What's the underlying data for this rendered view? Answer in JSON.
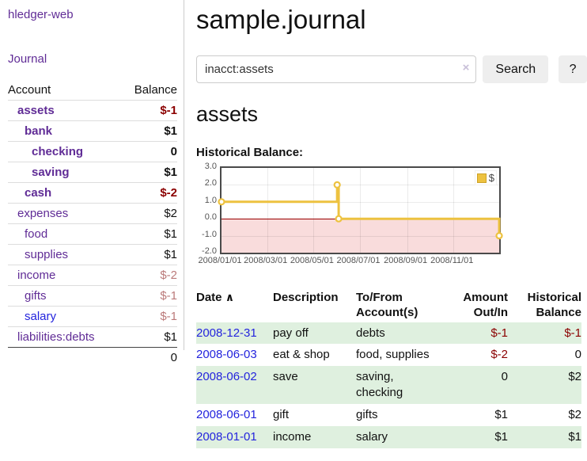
{
  "app": {
    "brand": "hledger-web"
  },
  "sidebar": {
    "journal_label": "Journal",
    "accounts_table": {
      "account_header": "Account",
      "balance_header": "Balance",
      "rows": [
        {
          "name": "assets",
          "level": 0,
          "bold": true,
          "balance": "$-1",
          "neg": "strong"
        },
        {
          "name": "bank",
          "level": 1,
          "bold": true,
          "balance": "$1"
        },
        {
          "name": "checking",
          "level": 2,
          "bold": true,
          "balance": "0"
        },
        {
          "name": "saving",
          "level": 2,
          "bold": true,
          "balance": "$1"
        },
        {
          "name": "cash",
          "level": 1,
          "bold": true,
          "balance": "$-2",
          "neg": "strong"
        },
        {
          "name": "expenses",
          "level": 0,
          "bold": false,
          "balance": "$2"
        },
        {
          "name": "food",
          "level": 1,
          "bold": false,
          "balance": "$1"
        },
        {
          "name": "supplies",
          "level": 1,
          "bold": false,
          "balance": "$1"
        },
        {
          "name": "income",
          "level": 0,
          "bold": false,
          "balance": "$-2",
          "neg": "soft"
        },
        {
          "name": "gifts",
          "level": 1,
          "bold": false,
          "balance": "$-1",
          "neg": "soft"
        },
        {
          "name": "salary",
          "level": 1,
          "bold": false,
          "balance": "$-1",
          "neg": "soft",
          "link_blue": true
        },
        {
          "name": "liabilities:debts",
          "level": 0,
          "bold": false,
          "balance": "$1"
        }
      ],
      "total": "0"
    }
  },
  "header": {
    "title": "sample.journal"
  },
  "search": {
    "query": "inacct:assets",
    "clear_icon": "×",
    "search_label": "Search",
    "help_label": "?"
  },
  "account_page": {
    "heading": "assets",
    "chart_label": "Historical Balance:"
  },
  "chart_data": {
    "type": "line",
    "title": "Historical Balance",
    "step": true,
    "series": [
      {
        "name": "$",
        "color": "#edc240",
        "points": [
          [
            "2008-01-01",
            1
          ],
          [
            "2008-06-01",
            2
          ],
          [
            "2008-06-03",
            0
          ],
          [
            "2008-12-31",
            -1
          ]
        ]
      }
    ],
    "x_range": [
      "2008-01-01",
      "2008-12-31"
    ],
    "x_ticks": [
      "2008/01/01",
      "2008/03/01",
      "2008/05/01",
      "2008/07/01",
      "2008/09/01",
      "2008/11/01"
    ],
    "y_ticks": [
      3.0,
      2.0,
      1.0,
      0.0,
      -1.0,
      -2.0
    ],
    "y_tick_labels": [
      "3.0",
      "2.0",
      "1.0",
      "0.0",
      "-1.0",
      "-2.0"
    ],
    "ylim": [
      -2,
      3
    ],
    "grid": true,
    "legend": {
      "position": "top-right",
      "label": "$"
    },
    "marker_fill": "#ffffff",
    "negative_region_color": "#f9dcdc",
    "zero_line_color": "#990000"
  },
  "register": {
    "headers": {
      "date": "Date",
      "sort_icon": "∧",
      "description": "Description",
      "accounts_line1": "To/From",
      "accounts_line2": "Account(s)",
      "amount_line1": "Amount",
      "amount_line2": "Out/In",
      "balance_line1": "Historical",
      "balance_line2": "Balance"
    },
    "rows": [
      {
        "date": "2008-12-31",
        "description": "pay off",
        "accounts": "debts",
        "amount": "$-1",
        "amount_neg": true,
        "balance": "$-1",
        "balance_neg": true
      },
      {
        "date": "2008-06-03",
        "description": "eat & shop",
        "accounts": "food, supplies",
        "amount": "$-2",
        "amount_neg": true,
        "balance": "0",
        "balance_neg": false
      },
      {
        "date": "2008-06-02",
        "description": "save",
        "accounts": "saving,\nchecking",
        "amount": "0",
        "amount_neg": false,
        "balance": "$2",
        "balance_neg": false
      },
      {
        "date": "2008-06-01",
        "description": "gift",
        "accounts": "gifts",
        "amount": "$1",
        "amount_neg": false,
        "balance": "$2",
        "balance_neg": false
      },
      {
        "date": "2008-01-01",
        "description": "income",
        "accounts": "salary",
        "amount": "$1",
        "amount_neg": false,
        "balance": "$1",
        "balance_neg": false
      }
    ]
  },
  "colors": {
    "link_purple": "#602c96",
    "link_blue": "#2424dd",
    "negative_strong": "#8b0000",
    "negative_soft": "#bb7a7a",
    "row_green": "#dff0df",
    "series_gold": "#edc240"
  }
}
